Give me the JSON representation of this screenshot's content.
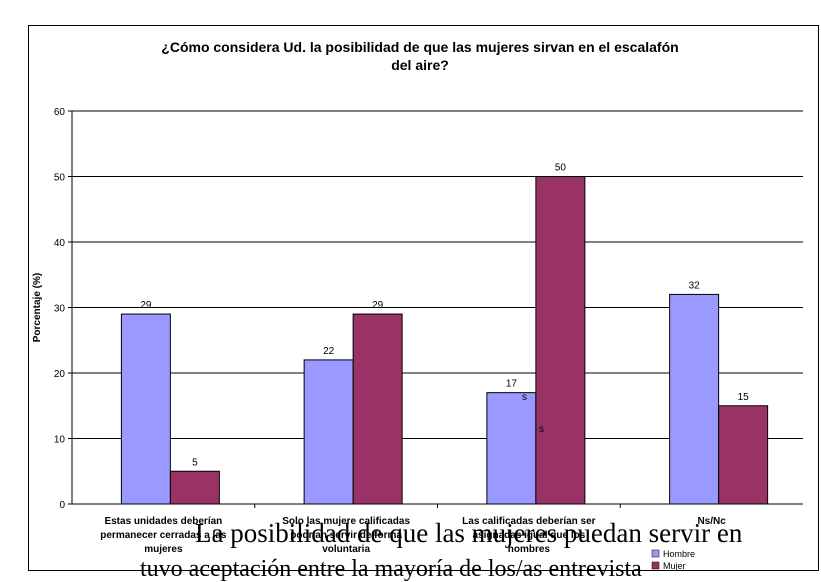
{
  "chart_data": {
    "type": "bar",
    "title_line1": "¿Cómo considera Ud. la posibilidad de que las mujeres sirvan en el escalafón",
    "title_line2": "del aire?",
    "xlabel": "",
    "ylabel": "Porcentaje (%)",
    "ylim": [
      0,
      60
    ],
    "yticks": [
      0,
      10,
      20,
      30,
      40,
      50,
      60
    ],
    "grid": true,
    "legend_position": "bottom-right",
    "categories": [
      [
        "Estas unidades deberían",
        "permanecer cerradas a las",
        "mujeres"
      ],
      [
        "Solo las mujere calificadas",
        "podrían servir de forma",
        "voluntaria"
      ],
      [
        "Las calificadas deberían ser",
        "asignadas igual que los",
        "hombres"
      ],
      [
        "Ns/Nc"
      ]
    ],
    "series": [
      {
        "name": "Hombre",
        "values": [
          29,
          22,
          17,
          32
        ],
        "color": "#9999ff"
      },
      {
        "name": "Mujer",
        "values": [
          5,
          29,
          50,
          15
        ],
        "color": "#993366"
      }
    ]
  },
  "caption": {
    "line1": "La posibilidad de que las mujeres puedan servir en",
    "line2": "tuvo aceptación entre la mayoría de los/as entrevista"
  },
  "stray_marks": [
    "s",
    "s"
  ]
}
